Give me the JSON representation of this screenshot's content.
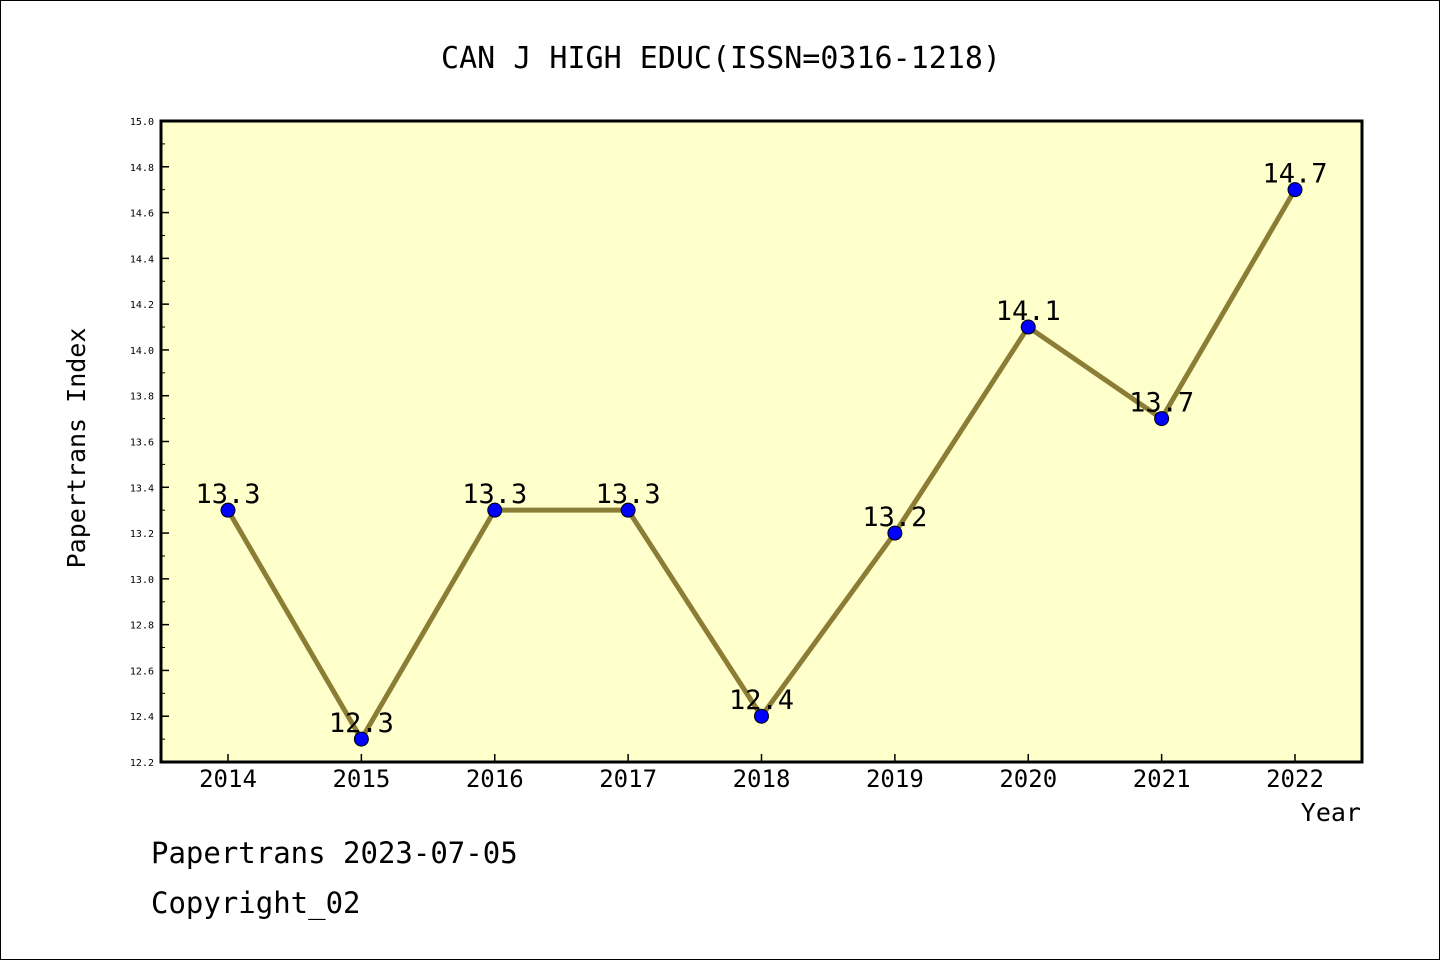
{
  "chart_data": {
    "type": "line",
    "title": "CAN J HIGH EDUC(ISSN=0316-1218)",
    "xlabel": "Year",
    "ylabel": "Papertrans Index",
    "categories": [
      "2014",
      "2015",
      "2016",
      "2017",
      "2018",
      "2019",
      "2020",
      "2021",
      "2022"
    ],
    "values": [
      13.3,
      12.3,
      13.3,
      13.3,
      12.4,
      13.2,
      14.1,
      13.7,
      14.7
    ],
    "data_labels": [
      "13.3",
      "12.3",
      "13.3",
      "13.3",
      "12.4",
      "13.2",
      "14.1",
      "13.7",
      "14.7"
    ],
    "ylim": [
      12.2,
      15.0
    ],
    "yticks": [
      "12.2",
      "12.4",
      "12.6",
      "12.8",
      "13.0",
      "13.2",
      "13.4",
      "13.6",
      "13.8",
      "14.0",
      "14.2",
      "14.4",
      "14.6",
      "14.8",
      "15.0"
    ],
    "grid": false,
    "legend": "none",
    "colors": {
      "plot_background": "#ffffcc",
      "line": "#8b7d36",
      "marker": "#0000ff"
    }
  },
  "footer": {
    "line1": "Papertrans 2023-07-05",
    "line2": "Copyright_02"
  }
}
